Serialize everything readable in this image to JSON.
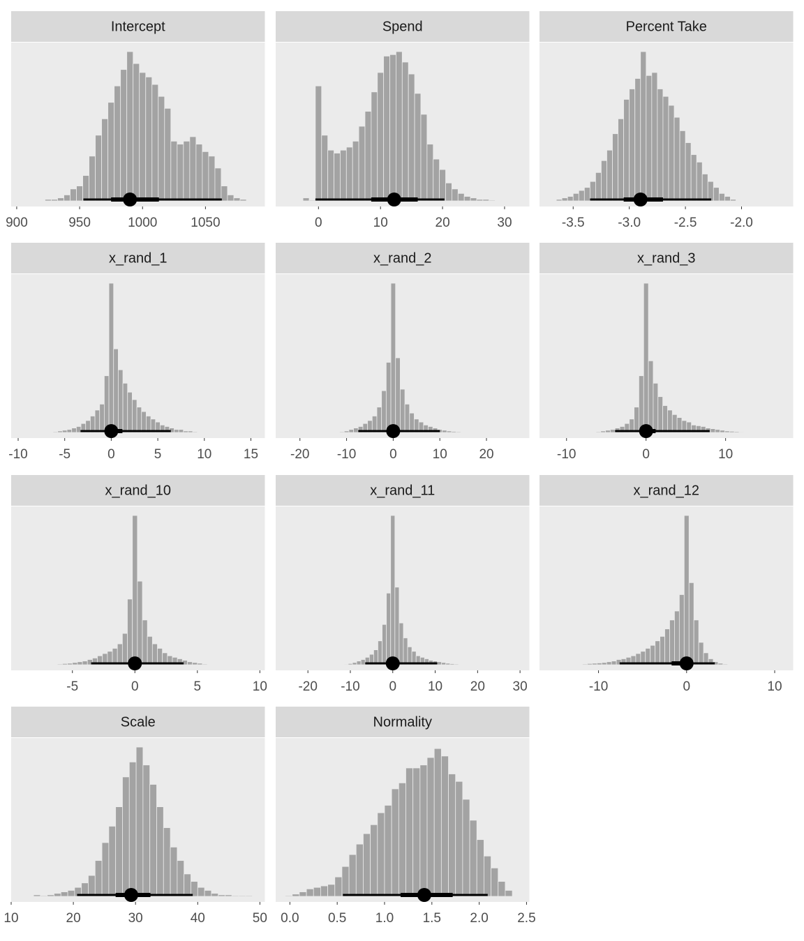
{
  "chart_data": [
    {
      "type": "histogram",
      "title": "Intercept",
      "color": "#a3a3a3",
      "interval_color": "#000000",
      "bins": [
        922.5,
        927.5,
        932.5,
        937.5,
        942.5,
        947.5,
        952.5,
        957.5,
        962.5,
        967.5,
        972.5,
        977.5,
        982.5,
        987.5,
        992.5,
        997.5,
        1002.5,
        1007.5,
        1012.5,
        1017.5,
        1022.5,
        1027.5,
        1032.5,
        1037.5,
        1042.5,
        1047.5,
        1052.5,
        1057.5,
        1062.5,
        1067.5,
        1072.5,
        1077.5,
        1082.5
      ],
      "values": [
        1,
        1,
        2,
        4,
        8,
        10,
        17,
        30,
        44,
        55,
        66,
        77,
        88,
        100,
        92,
        86,
        83,
        78,
        70,
        62,
        40,
        38,
        40,
        43,
        38,
        33,
        30,
        22,
        10,
        4,
        2,
        1
      ],
      "median": 990,
      "interval_inner": [
        975,
        1013
      ],
      "interval_outer": [
        953,
        1063
      ],
      "xlim": [
        895.6,
        1097.2
      ],
      "xticks": [
        900,
        950,
        1000,
        1050
      ]
    },
    {
      "type": "histogram",
      "title": "Spend",
      "color": "#a3a3a3",
      "interval_color": "#000000",
      "bins": [
        -2.5,
        -1.5,
        -0.5,
        0.5,
        1.5,
        2.5,
        3.5,
        4.5,
        5.5,
        6.5,
        7.5,
        8.5,
        9.5,
        10.5,
        11.5,
        12.5,
        13.5,
        14.5,
        15.5,
        16.5,
        17.5,
        18.5,
        19.5,
        20.5,
        21.5,
        22.5,
        23.5,
        24.5,
        25.5,
        26.5,
        27.5,
        28.5,
        29.5
      ],
      "values": [
        2,
        0.5,
        77,
        44,
        34,
        32,
        34,
        36,
        40,
        50,
        60,
        73,
        86,
        97,
        98,
        100,
        93,
        85,
        72,
        58,
        38,
        28,
        21,
        12,
        8,
        5,
        3,
        2,
        1,
        1,
        0.5,
        0.3
      ],
      "median": 12.2,
      "interval_inner": [
        8.5,
        16
      ],
      "interval_outer": [
        -0.5,
        20.3
      ],
      "xlim": [
        -6.9,
        34
      ],
      "xticks": [
        0,
        10,
        20,
        30
      ]
    },
    {
      "type": "histogram",
      "title": "Percent Take",
      "color": "#a3a3a3",
      "interval_color": "#000000",
      "bins": [
        -3.65,
        -3.6,
        -3.55,
        -3.5,
        -3.45,
        -3.4,
        -3.35,
        -3.3,
        -3.25,
        -3.2,
        -3.15,
        -3.1,
        -3.05,
        -3,
        -2.95,
        -2.9,
        -2.85,
        -2.8,
        -2.75,
        -2.7,
        -2.65,
        -2.6,
        -2.55,
        -2.5,
        -2.45,
        -2.4,
        -2.35,
        -2.3,
        -2.25,
        -2.2,
        -2.15,
        -2.1,
        -2.05
      ],
      "values": [
        1,
        2,
        3,
        5,
        7,
        9,
        13,
        19,
        27,
        34,
        45,
        55,
        68,
        75,
        82,
        100,
        84,
        86,
        75,
        70,
        64,
        56,
        47,
        39,
        31,
        26,
        18,
        13,
        9,
        5,
        3,
        1
      ],
      "median": -2.9,
      "interval_inner": [
        -3.05,
        -2.7
      ],
      "interval_outer": [
        -3.35,
        -2.27
      ],
      "xlim": [
        -3.8,
        -1.54
      ],
      "xticks": [
        -3.5,
        {
          "value": -3,
          "label": "-3.0"
        },
        -2.5,
        {
          "value": -2,
          "label": "-2.0"
        }
      ]
    },
    {
      "type": "histogram",
      "title": "x_rand_1",
      "color": "#a3a3a3",
      "interval_color": "#000000",
      "bins": [
        -6.25,
        -5.75,
        -5.25,
        -4.75,
        -4.25,
        -3.75,
        -3.25,
        -2.75,
        -2.25,
        -1.75,
        -1.25,
        -0.75,
        -0.25,
        0.25,
        0.75,
        1.25,
        1.75,
        2.25,
        2.75,
        3.25,
        3.75,
        4.25,
        4.75,
        5.25,
        5.75,
        6.25,
        6.75,
        7.25,
        7.75,
        8.25,
        8.75,
        9.25,
        9.75
      ],
      "values": [
        0.5,
        1,
        1.5,
        2,
        3,
        4,
        6,
        8,
        11,
        15,
        19,
        38,
        100,
        56,
        42,
        33,
        27,
        22,
        17,
        14,
        11,
        9,
        7,
        5,
        4,
        3,
        2,
        2,
        1,
        1,
        0.5,
        0.3
      ],
      "median": 0,
      "interval_inner": [
        -0.3,
        1.2
      ],
      "interval_outer": [
        -3.3,
        6.4
      ],
      "xlim": [
        -10.75,
        16.5
      ],
      "xticks": [
        -10,
        -5,
        0,
        5,
        10,
        15
      ]
    },
    {
      "type": "histogram",
      "title": "x_rand_2",
      "color": "#a3a3a3",
      "interval_color": "#000000",
      "bins": [
        -12.5,
        -11.5,
        -10.5,
        -9.5,
        -8.5,
        -7.5,
        -6.5,
        -5.5,
        -4.5,
        -3.5,
        -2.5,
        -1.5,
        -0.5,
        0.5,
        1.5,
        2.5,
        3.5,
        4.5,
        5.5,
        6.5,
        7.5,
        8.5,
        9.5,
        10.5,
        11.5,
        12.5,
        13.5,
        14.5,
        15.5,
        16.5,
        17.5,
        18.5,
        19.5
      ],
      "values": [
        0.3,
        0.5,
        1,
        2,
        3,
        4,
        6,
        8,
        11,
        17,
        28,
        47,
        100,
        50,
        29,
        19,
        13,
        9,
        7,
        5,
        4,
        3,
        2,
        1.5,
        1,
        0.7,
        0.5,
        0.3,
        0.2,
        0.1,
        0.1,
        0.1
      ],
      "median": 0,
      "interval_inner": [
        -1,
        1
      ],
      "interval_outer": [
        -7.5,
        10
      ],
      "xlim": [
        -25.2,
        29.2
      ],
      "xticks": [
        -20,
        -10,
        0,
        10,
        20
      ]
    },
    {
      "type": "histogram",
      "title": "x_rand_3",
      "color": "#a3a3a3",
      "interval_color": "#000000",
      "bins": [
        -6.3,
        -5.7,
        -5.1,
        -4.5,
        -3.9,
        -3.3,
        -2.7,
        -2.1,
        -1.5,
        -0.9,
        -0.3,
        0.3,
        0.9,
        1.5,
        2.1,
        2.7,
        3.3,
        3.9,
        4.5,
        5.1,
        5.7,
        6.3,
        6.9,
        7.5,
        8.1,
        8.7,
        9.3,
        9.9,
        10.5,
        11.1,
        11.7,
        12.3,
        12.9
      ],
      "values": [
        0.5,
        1,
        1.5,
        2,
        3,
        4,
        6,
        9,
        17,
        38,
        100,
        48,
        33,
        24,
        18,
        15,
        12,
        10,
        8,
        7,
        5,
        4.5,
        4,
        3,
        2.5,
        2,
        1.5,
        1,
        0.8,
        0.6,
        0.4,
        0.2
      ],
      "median": 0,
      "interval_inner": [
        -0.6,
        1.2
      ],
      "interval_outer": [
        -3.9,
        8
      ],
      "xlim": [
        -13.4,
        18.5
      ],
      "xticks": [
        -10,
        0,
        10
      ]
    },
    {
      "type": "histogram",
      "title": "x_rand_10",
      "color": "#a3a3a3",
      "interval_color": "#000000",
      "bins": [
        -6.6,
        -6.2,
        -5.8,
        -5.4,
        -5,
        -4.6,
        -4.2,
        -3.8,
        -3.4,
        -3,
        -2.6,
        -2.2,
        -1.8,
        -1.4,
        -1,
        -0.6,
        -0.2,
        0.2,
        0.6,
        1,
        1.4,
        1.8,
        2.2,
        2.6,
        3,
        3.4,
        3.8,
        4.2,
        4.6,
        5,
        5.4,
        5.8,
        6.2
      ],
      "values": [
        0.3,
        0.5,
        0.8,
        1,
        1.5,
        2,
        2.5,
        3.5,
        4.5,
        6,
        7.5,
        9,
        11,
        14,
        21,
        44,
        100,
        56,
        30,
        19,
        14,
        11,
        8,
        6,
        5,
        4,
        3,
        2,
        1.5,
        1,
        0.5,
        0.3
      ],
      "median": 0,
      "interval_inner": [
        -0.4,
        0.4
      ],
      "interval_outer": [
        -3.5,
        3.9
      ],
      "xlim": [
        -9.9,
        10.4
      ],
      "xticks": [
        -5,
        0,
        5,
        10
      ]
    },
    {
      "type": "histogram",
      "title": "x_rand_11",
      "color": "#a3a3a3",
      "interval_color": "#000000",
      "bins": [
        -12.5,
        -11.5,
        -10.5,
        -9.5,
        -8.5,
        -7.5,
        -6.5,
        -5.5,
        -4.5,
        -3.5,
        -2.5,
        -1.5,
        -0.5,
        0.5,
        1.5,
        2.5,
        3.5,
        4.5,
        5.5,
        6.5,
        7.5,
        8.5,
        9.5,
        10.5,
        11.5,
        12.5,
        13.5,
        14.5,
        15.5,
        16.5,
        17.5,
        18.5,
        19.5
      ],
      "values": [
        0.2,
        0.4,
        0.8,
        1.5,
        2.5,
        3.5,
        5,
        7,
        10,
        16,
        27,
        48,
        100,
        52,
        28,
        18,
        12,
        9,
        6,
        5,
        4,
        3,
        2.5,
        2,
        1.5,
        1,
        0.7,
        0.5,
        0.3,
        0.2,
        0.1,
        0.1
      ],
      "median": 0,
      "interval_inner": [
        -1,
        1
      ],
      "interval_outer": [
        -6.5,
        10.5
      ],
      "xlim": [
        -27.6,
        32.2
      ],
      "xticks": [
        -20,
        -10,
        0,
        10,
        20,
        30
      ]
    },
    {
      "type": "histogram",
      "title": "x_rand_12",
      "color": "#a3a3a3",
      "interval_color": "#000000",
      "bins": [
        -12.375,
        -11.825,
        -11.275,
        -10.725,
        -10.175,
        -9.625,
        -9.075,
        -8.525,
        -7.975,
        -7.425,
        -6.875,
        -6.325,
        -5.775,
        -5.225,
        -4.675,
        -4.125,
        -3.575,
        -3.025,
        -2.475,
        -1.925,
        -1.375,
        -0.825,
        -0.275,
        0.275,
        0.825,
        1.375,
        1.925,
        2.475,
        3.025,
        3.575,
        4.125,
        4.675,
        5.225
      ],
      "values": [
        0.3,
        0.5,
        0.8,
        1,
        1.2,
        1.5,
        2,
        2.5,
        3.5,
        4,
        5,
        6,
        7.5,
        9,
        11,
        13,
        16,
        19,
        24,
        30,
        36,
        47,
        100,
        55,
        30,
        15,
        8,
        4,
        2,
        1,
        0.5,
        0.3
      ],
      "median": 0,
      "interval_inner": [
        -1.7,
        0.3
      ],
      "interval_outer": [
        -7.6,
        3.2
      ],
      "xlim": [
        -16.7,
        12.1
      ],
      "xticks": [
        -10,
        0,
        10
      ]
    },
    {
      "type": "histogram",
      "title": "Scale",
      "color": "#a3a3a3",
      "interval_color": "#000000",
      "bins": [
        13.6,
        14.7,
        15.8,
        16.9,
        18,
        19.1,
        20.2,
        21.3,
        22.4,
        23.5,
        24.6,
        25.7,
        26.8,
        27.9,
        29,
        30.1,
        31.2,
        32.3,
        33.4,
        34.5,
        35.6,
        36.7,
        37.8,
        38.9,
        40,
        41.1,
        42.2,
        43.3,
        44.4,
        45.5,
        46.6,
        47.7,
        48.8
      ],
      "values": [
        1,
        0.5,
        1,
        2,
        3,
        4,
        6,
        9,
        14,
        24,
        36,
        47,
        60,
        80,
        90,
        100,
        88,
        75,
        60,
        46,
        33,
        24,
        15,
        10,
        6,
        4,
        2,
        1,
        1,
        0.5,
        0.5,
        0.5
      ],
      "median": 29.3,
      "interval_inner": [
        26.8,
        32.4
      ],
      "interval_outer": [
        20.6,
        39.2
      ],
      "xlim": [
        10,
        50.8
      ],
      "xticks": [
        10,
        20,
        30,
        40,
        50
      ]
    },
    {
      "type": "histogram",
      "title": "Normality",
      "color": "#a3a3a3",
      "interval_color": "#000000",
      "bins": [
        -0.05,
        0.025,
        0.1,
        0.175,
        0.25,
        0.325,
        0.4,
        0.475,
        0.55,
        0.625,
        0.7,
        0.775,
        0.85,
        0.925,
        1,
        1.075,
        1.15,
        1.225,
        1.3,
        1.375,
        1.45,
        1.525,
        1.6,
        1.675,
        1.75,
        1.825,
        1.9,
        1.975,
        2.05,
        2.125,
        2.2,
        2.275,
        2.35
      ],
      "values": [
        0.5,
        1.5,
        3,
        5,
        6,
        7,
        8,
        13,
        20,
        28,
        35,
        42,
        48,
        56,
        61,
        72,
        76,
        86,
        86,
        88,
        93,
        99,
        94,
        82,
        77,
        65,
        51,
        38,
        27,
        19,
        10,
        4
      ],
      "median": 1.42,
      "interval_inner": [
        1.17,
        1.72
      ],
      "interval_outer": [
        0.56,
        2.09
      ],
      "xlim": [
        -0.15,
        2.53
      ],
      "xticks": [
        {
          "value": 0,
          "label": "0.0"
        },
        0.5,
        {
          "value": 1,
          "label": "1.0"
        },
        1.5,
        {
          "value": 2,
          "label": "2.0"
        },
        2.5
      ]
    }
  ]
}
